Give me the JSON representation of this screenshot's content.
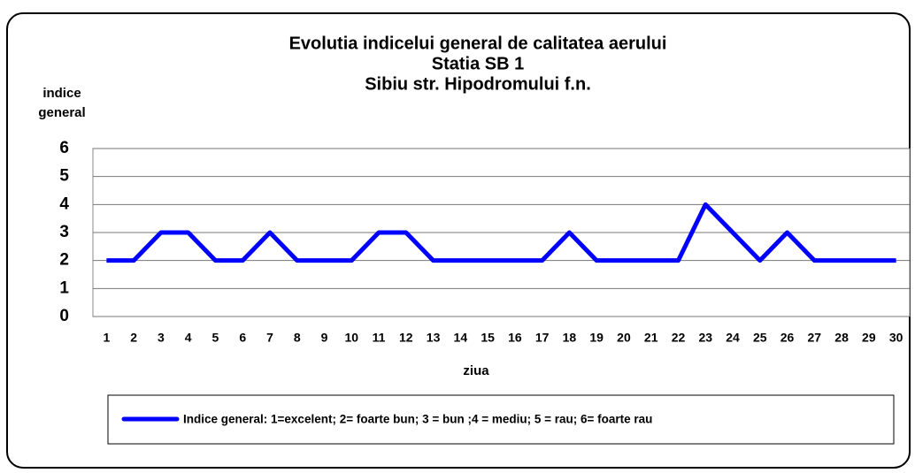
{
  "chart_data": {
    "type": "line",
    "title": [
      "Evolutia  indicelui  general de calitatea aerului",
      "Statia SB 1",
      "Sibiu str. Hipodromului f.n."
    ],
    "ylabel": [
      "indice",
      "general"
    ],
    "xlabel": "ziua",
    "categories": [
      1,
      2,
      3,
      4,
      5,
      6,
      7,
      8,
      9,
      10,
      11,
      12,
      13,
      14,
      15,
      16,
      17,
      18,
      19,
      20,
      21,
      22,
      23,
      24,
      25,
      26,
      27,
      28,
      29,
      30
    ],
    "series": [
      {
        "name": "Indice general: 1=excelent; 2= foarte bun; 3 = bun ;4 = mediu; 5 = rau; 6= foarte rau",
        "color": "#0000ff",
        "values": [
          2,
          2,
          3,
          3,
          2,
          2,
          3,
          2,
          2,
          2,
          3,
          3,
          2,
          2,
          2,
          2,
          2,
          3,
          2,
          2,
          2,
          2,
          4,
          3,
          2,
          3,
          2,
          2,
          2,
          2
        ]
      }
    ],
    "ylim": [
      0,
      6
    ],
    "yticks": [
      0,
      1,
      2,
      3,
      4,
      5,
      6
    ],
    "grid": true,
    "legend": "bottom"
  }
}
